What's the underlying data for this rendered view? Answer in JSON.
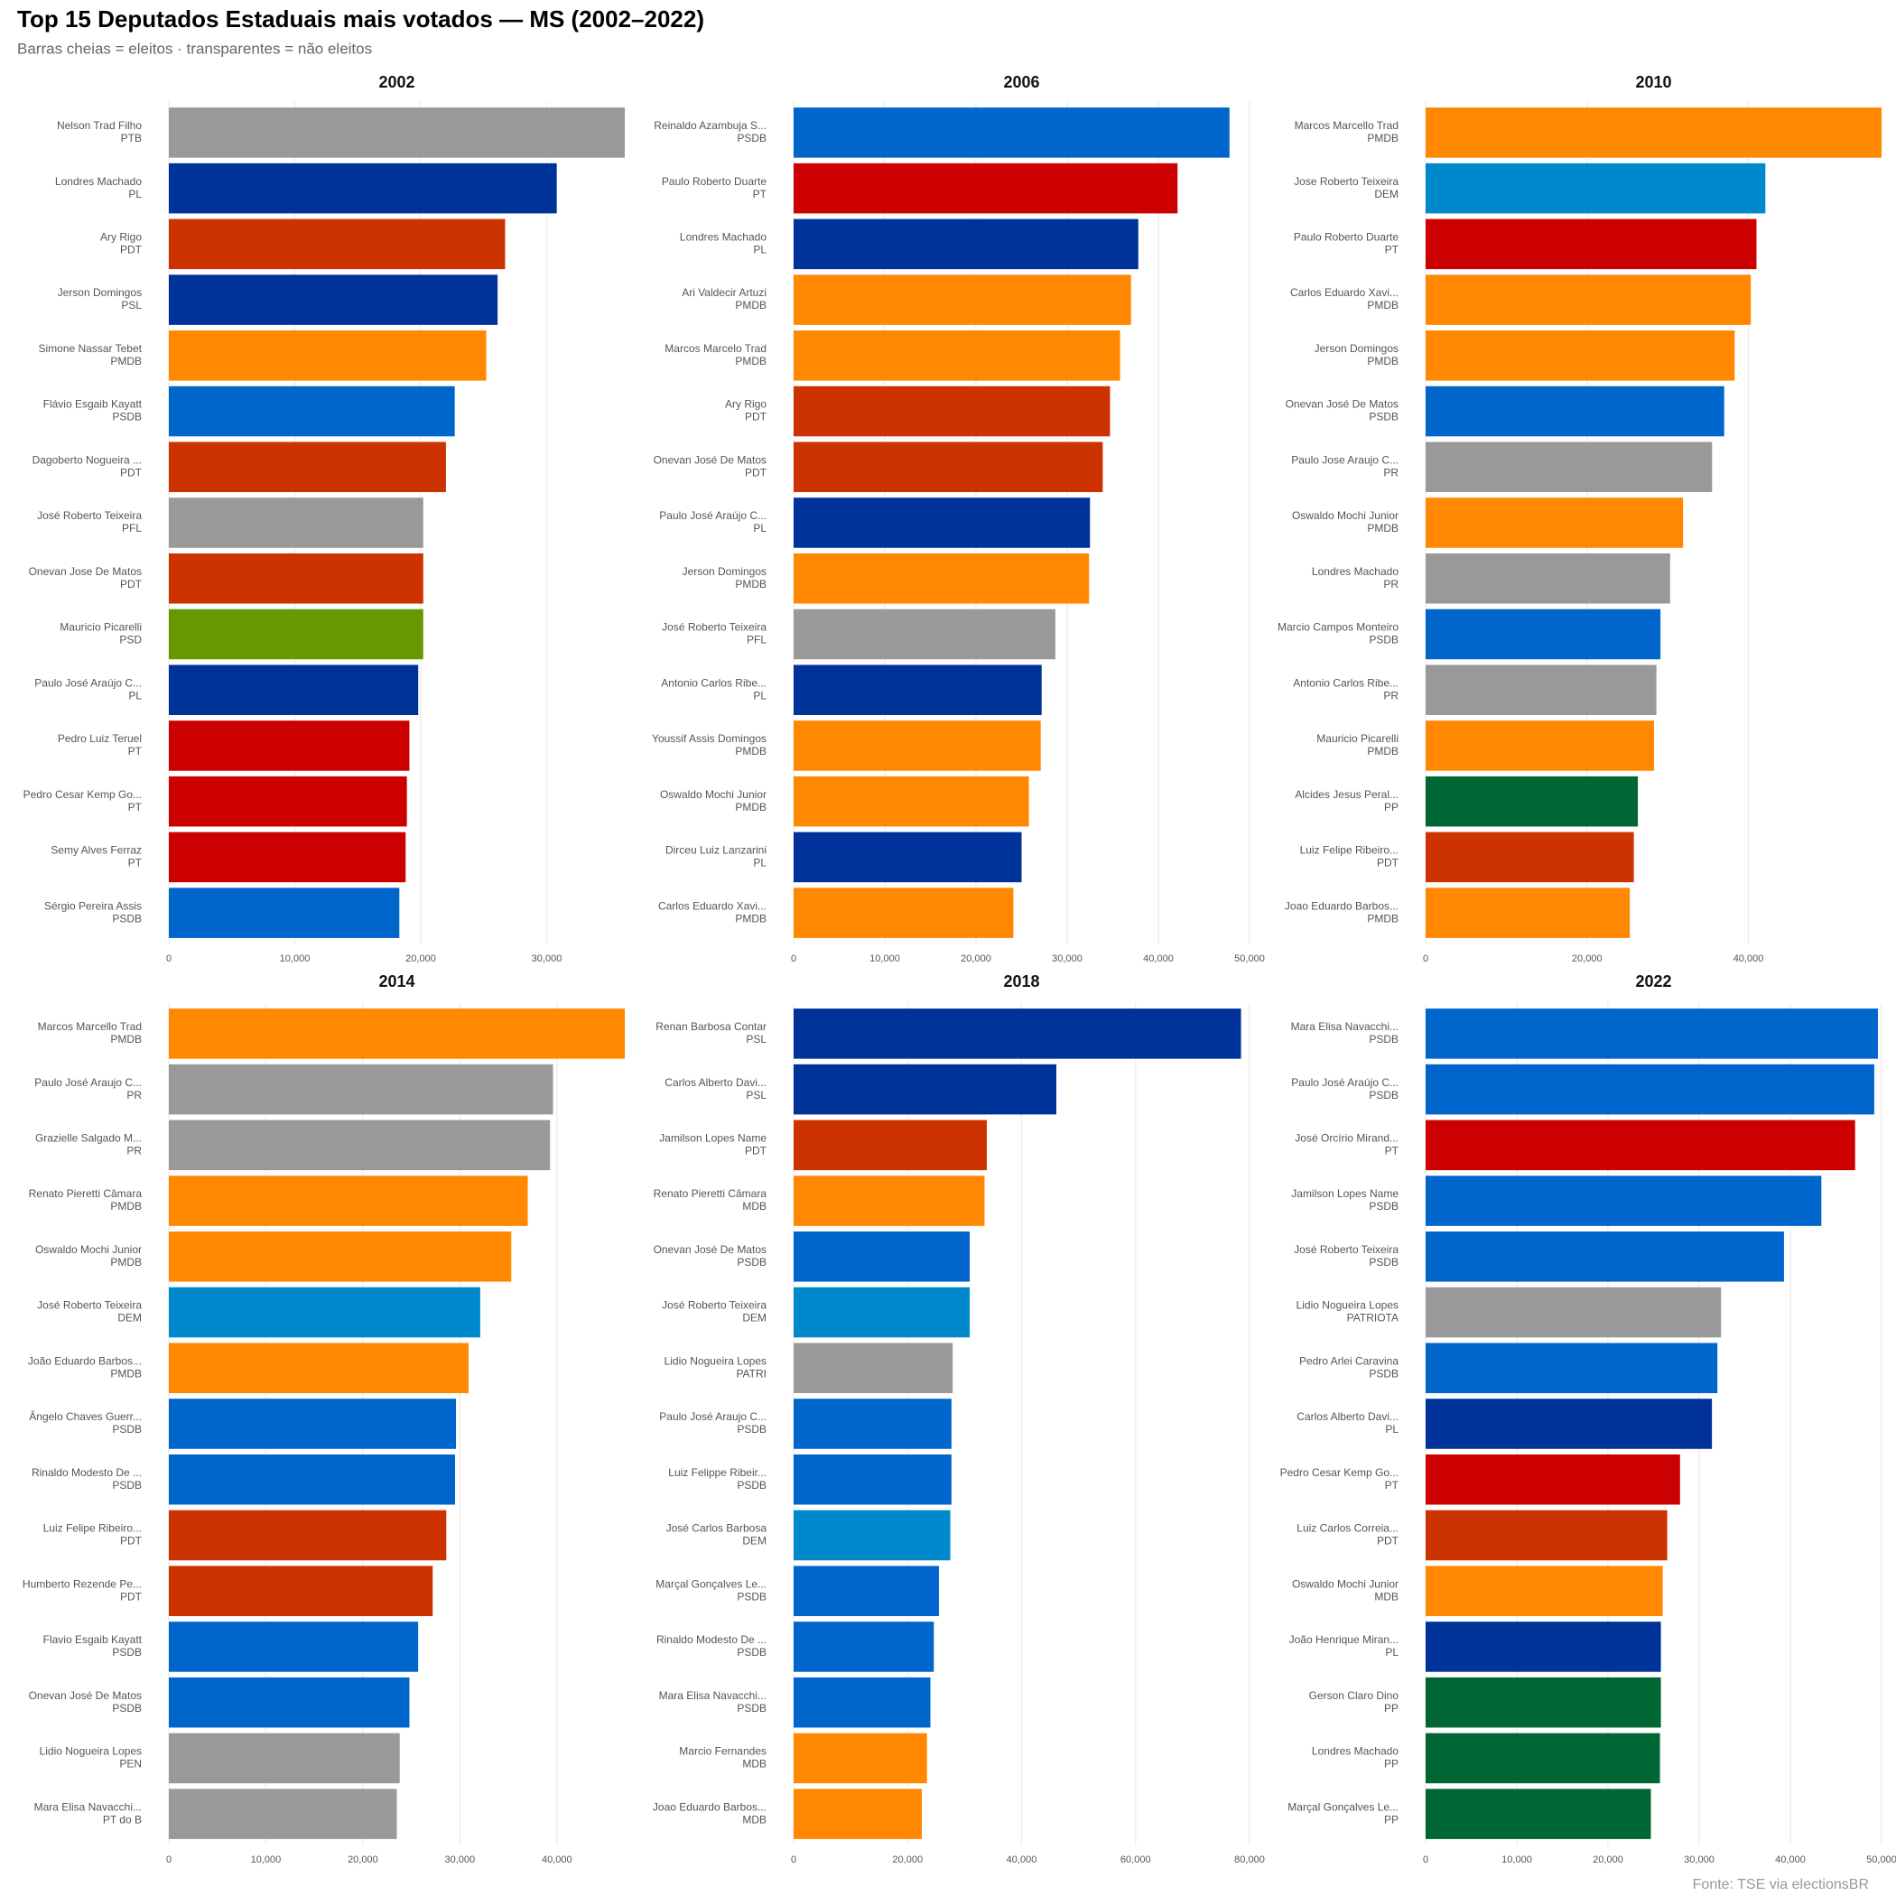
{
  "header": {
    "title": "Top 15 Deputados Estaduais mais votados — MS (2002–2022)",
    "subtitle": "Barras cheias = eleitos · transparentes = não eleitos"
  },
  "source": "Fonte: TSE via electionsBR",
  "chart_data": [
    {
      "type": "bar",
      "orientation": "horizontal",
      "title": "2002",
      "categories": [
        "Nelson Trad Filho",
        "Londres Machado",
        "Ary Rigo",
        "Jerson Domingos",
        "Simone Nassar Tebet",
        "Flávio Esgaib Kayatt",
        "Dagoberto Nogueira ...",
        "José Roberto Teixeira",
        "Onevan Jose De Matos",
        "Mauricio Picarelli",
        "Paulo José Araújo C...",
        "Pedro Luiz Teruel",
        "Pedro Cesar Kemp Go...",
        "Semy Alves Ferraz",
        "Sérgio Pereira Assis"
      ],
      "parties": [
        "PTB",
        "PL",
        "PDT",
        "PSL",
        "PMDB",
        "PSDB",
        "PDT",
        "PFL",
        "PDT",
        "PSD",
        "PL",
        "PT",
        "PT",
        "PT",
        "PSDB"
      ],
      "values": [
        36200,
        30800,
        26700,
        26100,
        25200,
        22700,
        22000,
        20200,
        20200,
        20200,
        19800,
        19100,
        18900,
        18800,
        18300
      ],
      "colors": [
        "#999999",
        "#003399",
        "#cc3300",
        "#003399",
        "#ff8800",
        "#0066cc",
        "#cc3300",
        "#999999",
        "#cc3300",
        "#669900",
        "#003399",
        "#cc0000",
        "#cc0000",
        "#cc0000",
        "#0066cc"
      ],
      "xlim": [
        0,
        36200
      ],
      "xticks": [
        0,
        {
          "value": 10000,
          "label": "10,000"
        },
        {
          "value": 20000,
          "label": "20,000"
        },
        {
          "value": 30000,
          "label": "30,000"
        }
      ]
    },
    {
      "type": "bar",
      "orientation": "horizontal",
      "title": "2006",
      "categories": [
        "Reinaldo Azambuja S...",
        "Paulo Roberto Duarte",
        "Londres Machado",
        "Ari Valdecir Artuzi",
        "Marcos Marcelo Trad",
        "Ary Rigo",
        "Onevan José De Matos",
        "Paulo José Araújo C...",
        "Jerson Domingos",
        "José Roberto Teixeira",
        "Antonio Carlos Ribe...",
        "Youssif Assis Domingos",
        "Oswaldo Mochi Junior",
        "Dirceu Luiz Lanzarini",
        "Carlos Eduardo Xavi..."
      ],
      "parties": [
        "PSDB",
        "PT",
        "PL",
        "PMDB",
        "PMDB",
        "PDT",
        "PDT",
        "PL",
        "PMDB",
        "PFL",
        "PL",
        "PMDB",
        "PMDB",
        "PL",
        "PMDB"
      ],
      "values": [
        47800,
        42100,
        37800,
        37000,
        35800,
        34700,
        33900,
        32500,
        32400,
        28700,
        27200,
        27100,
        25800,
        25000,
        24100
      ],
      "colors": [
        "#0066cc",
        "#cc0000",
        "#003399",
        "#ff8800",
        "#ff8800",
        "#cc3300",
        "#cc3300",
        "#003399",
        "#ff8800",
        "#999999",
        "#003399",
        "#ff8800",
        "#ff8800",
        "#003399",
        "#ff8800"
      ],
      "xlim": [
        0,
        50000
      ],
      "xticks": [
        0,
        {
          "value": 10000,
          "label": "10,000"
        },
        {
          "value": 20000,
          "label": "20,000"
        },
        {
          "value": 30000,
          "label": "30,000"
        },
        {
          "value": 40000,
          "label": "40,000"
        },
        {
          "value": 50000,
          "label": "50,000"
        }
      ]
    },
    {
      "type": "bar",
      "orientation": "horizontal",
      "title": "2010",
      "categories": [
        "Marcos Marcello Trad",
        "Jose Roberto Teixeira",
        "Paulo Roberto Duarte",
        "Carlos Eduardo Xavi...",
        "Jerson Domingos",
        "Onevan José De Matos",
        "Paulo Jose Araujo C...",
        "Oswaldo Mochi Junior",
        "Londres Machado",
        "Marcio Campos Monteiro",
        "Antonio Carlos Ribe...",
        "Mauricio Picarelli",
        "Alcides Jesus Peral...",
        "Luiz Felipe Ribeiro...",
        "Joao Eduardo Barbos..."
      ],
      "parties": [
        "PMDB",
        "DEM",
        "PT",
        "PMDB",
        "PMDB",
        "PSDB",
        "PR",
        "PMDB",
        "PR",
        "PSDB",
        "PR",
        "PMDB",
        "PP",
        "PDT",
        "PMDB"
      ],
      "values": [
        56500,
        42100,
        41000,
        40300,
        38300,
        37000,
        35500,
        31900,
        30300,
        29100,
        28600,
        28300,
        26300,
        25800,
        25300
      ],
      "colors": [
        "#ff8800",
        "#0088cc",
        "#cc0000",
        "#ff8800",
        "#ff8800",
        "#0066cc",
        "#999999",
        "#ff8800",
        "#999999",
        "#0066cc",
        "#999999",
        "#ff8800",
        "#006633",
        "#cc3300",
        "#ff8800"
      ],
      "xlim": [
        0,
        56500
      ],
      "xticks": [
        0,
        {
          "value": 20000,
          "label": "20,000"
        },
        {
          "value": 40000,
          "label": "40,000"
        }
      ]
    },
    {
      "type": "bar",
      "orientation": "horizontal",
      "title": "2014",
      "categories": [
        "Marcos Marcello Trad",
        "Paulo José Araujo C...",
        "Grazielle Salgado M...",
        "Renato Pieretti Câmara",
        "Oswaldo Mochi Junior",
        "José Roberto Teixeira",
        "João Eduardo Barbos...",
        "Ângelo Chaves Guerr...",
        "Rinaldo Modesto De ...",
        "Luiz Felipe Ribeiro...",
        "Humberto Rezende Pe...",
        "Flavio Esgaib Kayatt",
        "Onevan José De Matos",
        "Lidio Nogueira Lopes",
        "Mara Elisa Navacchi..."
      ],
      "parties": [
        "PMDB",
        "PR",
        "PR",
        "PMDB",
        "PMDB",
        "DEM",
        "PMDB",
        "PSDB",
        "PSDB",
        "PDT",
        "PDT",
        "PSDB",
        "PSDB",
        "PEN",
        "PT do B"
      ],
      "values": [
        47000,
        39600,
        39300,
        37000,
        35300,
        32100,
        30900,
        29600,
        29500,
        28600,
        27200,
        25700,
        24800,
        23800,
        23500
      ],
      "colors": [
        "#ff8800",
        "#999999",
        "#999999",
        "#ff8800",
        "#ff8800",
        "#0088cc",
        "#ff8800",
        "#0066cc",
        "#0066cc",
        "#cc3300",
        "#cc3300",
        "#0066cc",
        "#0066cc",
        "#999999",
        "#999999"
      ],
      "xlim": [
        0,
        47000
      ],
      "xticks": [
        0,
        {
          "value": 10000,
          "label": "10,000"
        },
        {
          "value": 20000,
          "label": "20,000"
        },
        {
          "value": 30000,
          "label": "30,000"
        },
        {
          "value": 40000,
          "label": "40,000"
        }
      ]
    },
    {
      "type": "bar",
      "orientation": "horizontal",
      "title": "2018",
      "categories": [
        "Renan Barbosa Contar",
        "Carlos Alberto Davi...",
        "Jamilson Lopes Name",
        "Renato Pieretti Câmara",
        "Onevan José De Matos",
        "José Roberto Teixeira",
        "Lidio Nogueira Lopes",
        "Paulo José Araujo C...",
        "Luiz Felippe Ribeir...",
        "José Carlos Barbosa",
        "Marçal Gonçalves Le...",
        "Rinaldo Modesto De ...",
        "Mara Elisa Navacchi...",
        "Marcio Fernandes",
        "Joao Eduardo Barbos..."
      ],
      "parties": [
        "PSL",
        "PSL",
        "PDT",
        "MDB",
        "PSDB",
        "DEM",
        "PATRI",
        "PSDB",
        "PSDB",
        "DEM",
        "PSDB",
        "PSDB",
        "PSDB",
        "MDB",
        "MDB"
      ],
      "values": [
        78500,
        46100,
        33900,
        33500,
        30900,
        30900,
        27900,
        27700,
        27700,
        27500,
        25500,
        24600,
        24000,
        23400,
        22500
      ],
      "colors": [
        "#003399",
        "#003399",
        "#cc3300",
        "#ff8800",
        "#0066cc",
        "#0088cc",
        "#999999",
        "#0066cc",
        "#0066cc",
        "#0088cc",
        "#0066cc",
        "#0066cc",
        "#0066cc",
        "#ff8800",
        "#ff8800"
      ],
      "xlim": [
        0,
        80000
      ],
      "xticks": [
        0,
        {
          "value": 20000,
          "label": "20,000"
        },
        {
          "value": 40000,
          "label": "40,000"
        },
        {
          "value": 60000,
          "label": "60,000"
        },
        {
          "value": 80000,
          "label": "80,000"
        }
      ]
    },
    {
      "type": "bar",
      "orientation": "horizontal",
      "title": "2022",
      "categories": [
        "Mara Elisa Navacchi...",
        "Paulo José Araújo C...",
        "José Orcírio Mirand...",
        "Jamilson Lopes Name",
        "José Roberto Teixeira",
        "Lidio Nogueira Lopes",
        "Pedro Arlei Caravina",
        "Carlos Alberto Davi...",
        "Pedro Cesar Kemp Go...",
        "Luiz Carlos Correia...",
        "Oswaldo Mochi Junior",
        "João Henrique Miran...",
        "Gerson Claro Dino",
        "Londres Machado",
        "Marçal Gonçalves Le..."
      ],
      "parties": [
        "PSDB",
        "PSDB",
        "PT",
        "PSDB",
        "PSDB",
        "PATRIOTA",
        "PSDB",
        "PL",
        "PT",
        "PDT",
        "MDB",
        "PL",
        "PP",
        "PP",
        "PP"
      ],
      "values": [
        49600,
        49200,
        47100,
        43400,
        39300,
        32400,
        32000,
        31400,
        27900,
        26500,
        26000,
        25800,
        25800,
        25700,
        24700
      ],
      "colors": [
        "#0066cc",
        "#0066cc",
        "#cc0000",
        "#0066cc",
        "#0066cc",
        "#999999",
        "#0066cc",
        "#003399",
        "#cc0000",
        "#cc3300",
        "#ff8800",
        "#003399",
        "#006633",
        "#006633",
        "#006633"
      ],
      "xlim": [
        0,
        50000
      ],
      "xticks": [
        0,
        {
          "value": 10000,
          "label": "10,000"
        },
        {
          "value": 20000,
          "label": "20,000"
        },
        {
          "value": 30000,
          "label": "30,000"
        },
        {
          "value": 40000,
          "label": "40,000"
        },
        {
          "value": 50000,
          "label": "50,000"
        }
      ]
    }
  ]
}
